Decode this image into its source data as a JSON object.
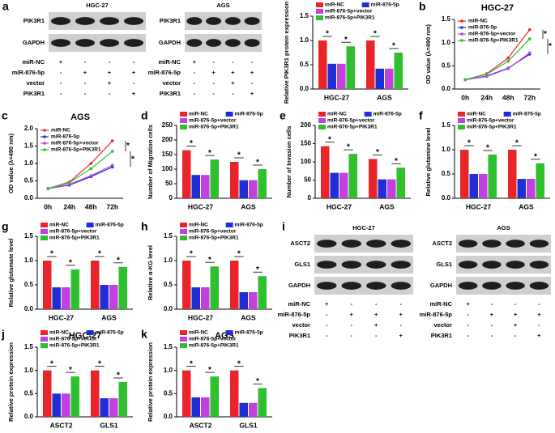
{
  "chart_data": [
    {
      "type": "bar",
      "y_label": "Relative PIK3R1 protein expression",
      "categories": [
        "HGC-27",
        "AGS"
      ],
      "significance": "*",
      "series": [
        {
          "name": "miR-NC",
          "color": "#e8262a",
          "values": [
            1.0,
            1.0
          ]
        },
        {
          "name": "miR-876-5p",
          "color": "#1f2fd6",
          "values": [
            0.52,
            0.42
          ]
        },
        {
          "name": "miR-876-5p+vector",
          "color": "#c040e0",
          "values": [
            0.52,
            0.42
          ]
        },
        {
          "name": "miR-876-5p+PIK3R1",
          "color": "#2fbf2f",
          "values": [
            0.88,
            0.75
          ]
        }
      ],
      "ylim": [
        0,
        1.5
      ],
      "yticks": [
        {
          "value": 0,
          "label": "0.0"
        },
        0.5,
        {
          "value": 1,
          "label": "1.0"
        },
        1.5
      ]
    },
    {
      "type": "line",
      "panel": "b",
      "title": "HGC-27",
      "y_label": "OD value (λ=490 nm)",
      "categories": [
        "0h",
        "24h",
        "48h",
        "72h"
      ],
      "significance": "*",
      "series": [
        {
          "name": "miR-NC",
          "color": "#e8262a",
          "values": [
            0.2,
            0.33,
            0.67,
            1.28
          ]
        },
        {
          "name": "miR-876-5p",
          "color": "#1f2fd6",
          "values": [
            0.2,
            0.28,
            0.45,
            0.75
          ]
        },
        {
          "name": "miR-876-5p+vector",
          "color": "#c040e0",
          "values": [
            0.2,
            0.27,
            0.44,
            0.78
          ]
        },
        {
          "name": "miR-876-5p+PIK3R1",
          "color": "#2fbf2f",
          "values": [
            0.2,
            0.32,
            0.6,
            1.08
          ]
        }
      ],
      "ylim": [
        0,
        1.5
      ],
      "yticks": [
        {
          "value": 0,
          "label": "0.0"
        },
        0.5,
        {
          "value": 1,
          "label": "1.0"
        },
        1.5
      ]
    },
    {
      "type": "line",
      "panel": "c",
      "title": "AGS",
      "y_label": "OD value (λ=490 nm)",
      "categories": [
        "0h",
        "24h",
        "48h",
        "72h"
      ],
      "significance": "*",
      "series": [
        {
          "name": "miR-NC",
          "color": "#e8262a",
          "values": [
            0.28,
            0.47,
            1.0,
            1.65
          ]
        },
        {
          "name": "miR-876-5p",
          "color": "#1f2fd6",
          "values": [
            0.28,
            0.38,
            0.62,
            0.9
          ]
        },
        {
          "name": "miR-876-5p+vector",
          "color": "#c040e0",
          "values": [
            0.28,
            0.4,
            0.65,
            0.95
          ]
        },
        {
          "name": "miR-876-5p+PIK3R1",
          "color": "#2fbf2f",
          "values": [
            0.28,
            0.45,
            0.85,
            1.35
          ]
        }
      ],
      "ylim": [
        0,
        2
      ],
      "yticks": [
        {
          "value": 0,
          "label": "0.0"
        },
        0.5,
        {
          "value": 1,
          "label": "1.0"
        },
        1.5,
        {
          "value": 2,
          "label": "2.0"
        }
      ]
    },
    {
      "type": "bar",
      "panel": "d",
      "y_label": "Number of Migration cells",
      "categories": [
        "HGC-27",
        "AGS"
      ],
      "significance": "*",
      "series": [
        {
          "name": "miR-NC",
          "color": "#e8262a",
          "values": [
            165,
            125
          ]
        },
        {
          "name": "miR-876-5p",
          "color": "#1f2fd6",
          "values": [
            80,
            62
          ]
        },
        {
          "name": "miR-876-5p+vector",
          "color": "#c040e0",
          "values": [
            80,
            62
          ]
        },
        {
          "name": "miR-876-5p+PIK3R1",
          "color": "#2fbf2f",
          "values": [
            133,
            100
          ]
        }
      ],
      "ylim": [
        0,
        250
      ],
      "yticks": [
        0,
        50,
        100,
        150,
        200,
        250
      ]
    },
    {
      "type": "bar",
      "panel": "e",
      "y_label": "Number of Invasion cells",
      "categories": [
        "HGC-27",
        "AGS"
      ],
      "significance": "*",
      "series": [
        {
          "name": "miR-NC",
          "color": "#e8262a",
          "values": [
            143,
            108
          ]
        },
        {
          "name": "miR-876-5p",
          "color": "#1f2fd6",
          "values": [
            70,
            52
          ]
        },
        {
          "name": "miR-876-5p+vector",
          "color": "#c040e0",
          "values": [
            70,
            52
          ]
        },
        {
          "name": "miR-876-5p+PIK3R1",
          "color": "#2fbf2f",
          "values": [
            122,
            84
          ]
        }
      ],
      "ylim": [
        0,
        200
      ],
      "yticks": [
        0,
        50,
        100,
        150,
        200
      ]
    },
    {
      "type": "bar",
      "panel": "f",
      "y_label": "Relative glutamine level",
      "categories": [
        "HGC-27",
        "AGS"
      ],
      "significance": "*",
      "series": [
        {
          "name": "miR-NC",
          "color": "#e8262a",
          "values": [
            1.0,
            1.0
          ]
        },
        {
          "name": "miR-876-5p",
          "color": "#1f2fd6",
          "values": [
            0.5,
            0.4
          ]
        },
        {
          "name": "miR-876-5p+vector",
          "color": "#c040e0",
          "values": [
            0.5,
            0.4
          ]
        },
        {
          "name": "miR-876-5p+PIK3R1",
          "color": "#2fbf2f",
          "values": [
            0.9,
            0.72
          ]
        }
      ],
      "ylim": [
        0,
        1.5
      ],
      "yticks": [
        {
          "value": 0,
          "label": "0.0"
        },
        0.5,
        {
          "value": 1,
          "label": "1.0"
        },
        1.5
      ]
    },
    {
      "type": "bar",
      "panel": "g",
      "y_label": "Relative glutamate level",
      "categories": [
        "HGC-27",
        "AGS"
      ],
      "significance": "*",
      "series": [
        {
          "name": "miR-NC",
          "color": "#e8262a",
          "values": [
            1.0,
            1.0
          ]
        },
        {
          "name": "miR-876-5p",
          "color": "#1f2fd6",
          "values": [
            0.45,
            0.5
          ]
        },
        {
          "name": "miR-876-5p+vector",
          "color": "#c040e0",
          "values": [
            0.45,
            0.5
          ]
        },
        {
          "name": "miR-876-5p+PIK3R1",
          "color": "#2fbf2f",
          "values": [
            0.82,
            0.87
          ]
        }
      ],
      "ylim": [
        0,
        1.5
      ],
      "yticks": [
        {
          "value": 0,
          "label": "0.0"
        },
        0.5,
        {
          "value": 1,
          "label": "1.0"
        },
        1.5
      ]
    },
    {
      "type": "bar",
      "panel": "h",
      "y_label": "Relative α-KG level",
      "categories": [
        "HGC-27",
        "AGS"
      ],
      "significance": "*",
      "series": [
        {
          "name": "miR-NC",
          "color": "#e8262a",
          "values": [
            1.0,
            1.0
          ]
        },
        {
          "name": "miR-876-5p",
          "color": "#1f2fd6",
          "values": [
            0.45,
            0.35
          ]
        },
        {
          "name": "miR-876-5p+vector",
          "color": "#c040e0",
          "values": [
            0.45,
            0.35
          ]
        },
        {
          "name": "miR-876-5p+PIK3R1",
          "color": "#2fbf2f",
          "values": [
            0.88,
            0.68
          ]
        }
      ],
      "ylim": [
        0,
        1.5
      ],
      "yticks": [
        {
          "value": 0,
          "label": "0.0"
        },
        0.5,
        {
          "value": 1,
          "label": "1.0"
        },
        1.5
      ]
    },
    {
      "type": "bar",
      "panel": "j",
      "title": "HGC-27",
      "y_label": "Relative protein expression",
      "categories": [
        "ASCT2",
        "GLS1"
      ],
      "significance": "*",
      "series": [
        {
          "name": "miR-NC",
          "color": "#e8262a",
          "values": [
            1.0,
            1.0
          ]
        },
        {
          "name": "miR-876-5p",
          "color": "#1f2fd6",
          "values": [
            0.5,
            0.4
          ]
        },
        {
          "name": "miR-876-5p+vector",
          "color": "#c040e0",
          "values": [
            0.5,
            0.4
          ]
        },
        {
          "name": "miR-876-5p+PIK3R1",
          "color": "#2fbf2f",
          "values": [
            0.87,
            0.75
          ]
        }
      ],
      "ylim": [
        0,
        1.5
      ],
      "yticks": [
        {
          "value": 0,
          "label": "0.0"
        },
        0.5,
        {
          "value": 1,
          "label": "1.0"
        },
        1.5
      ]
    },
    {
      "type": "bar",
      "panel": "k",
      "title": "AGS",
      "y_label": "Relative protein expression",
      "categories": [
        "ASCT2",
        "GLS1"
      ],
      "significance": "*",
      "series": [
        {
          "name": "miR-NC",
          "color": "#e8262a",
          "values": [
            1.0,
            1.0
          ]
        },
        {
          "name": "miR-876-5p",
          "color": "#1f2fd6",
          "values": [
            0.42,
            0.3
          ]
        },
        {
          "name": "miR-876-5p+vector",
          "color": "#c040e0",
          "values": [
            0.42,
            0.3
          ]
        },
        {
          "name": "miR-876-5p+PIK3R1",
          "color": "#2fbf2f",
          "values": [
            0.87,
            0.62
          ]
        }
      ],
      "ylim": [
        0,
        1.5
      ],
      "yticks": [
        {
          "value": 0,
          "label": "0.0"
        },
        0.5,
        {
          "value": 1,
          "label": "1.0"
        },
        1.5
      ]
    }
  ],
  "blots": [
    {
      "panel": "a",
      "title": "HGC-27",
      "proteins": [
        "PIK3R1",
        "GAPDH"
      ],
      "conditions": [
        {
          "label": "miR-NC",
          "marks": [
            "+",
            "-",
            "-",
            "-"
          ]
        },
        {
          "label": "miR-876-5p",
          "marks": [
            "-",
            "+",
            "+",
            "+"
          ]
        },
        {
          "label": "vector",
          "marks": [
            "-",
            "-",
            "+",
            "-"
          ]
        },
        {
          "label": "PIK3R1",
          "marks": [
            "-",
            "-",
            "-",
            "+"
          ]
        }
      ]
    },
    {
      "title": "AGS",
      "proteins": [
        "PIK3R1",
        "GAPDH"
      ],
      "conditions": [
        {
          "label": "miR-NC",
          "marks": [
            "+",
            "-",
            "-",
            "-"
          ]
        },
        {
          "label": "miR-876-5p",
          "marks": [
            "-",
            "+",
            "+",
            "+"
          ]
        },
        {
          "label": "vector",
          "marks": [
            "-",
            "-",
            "+",
            "-"
          ]
        },
        {
          "label": "PIK3R1",
          "marks": [
            "-",
            "-",
            "-",
            "+"
          ]
        }
      ]
    },
    {
      "panel": "i",
      "title": "HGC-27",
      "proteins": [
        "ASCT2",
        "GLS1",
        "GAPDH"
      ],
      "conditions": [
        {
          "label": "miR-NC",
          "marks": [
            "+",
            "-",
            "-",
            "-"
          ]
        },
        {
          "label": "miR-876-5p",
          "marks": [
            "-",
            "+",
            "+",
            "+"
          ]
        },
        {
          "label": "vector",
          "marks": [
            "-",
            "-",
            "+",
            "-"
          ]
        },
        {
          "label": "PIK3R1",
          "marks": [
            "-",
            "-",
            "-",
            "+"
          ]
        }
      ]
    },
    {
      "title": "AGS",
      "proteins": [
        "ASCT2",
        "GLS1",
        "GAPDH"
      ],
      "conditions": [
        {
          "label": "miR-NC",
          "marks": [
            "+",
            "-",
            "-",
            "-"
          ]
        },
        {
          "label": "miR-876-5p",
          "marks": [
            "-",
            "+",
            "+",
            "+"
          ]
        },
        {
          "label": "vector",
          "marks": [
            "-",
            "-",
            "+",
            "-"
          ]
        },
        {
          "label": "PIK3R1",
          "marks": [
            "-",
            "-",
            "-",
            "+"
          ]
        }
      ]
    }
  ]
}
